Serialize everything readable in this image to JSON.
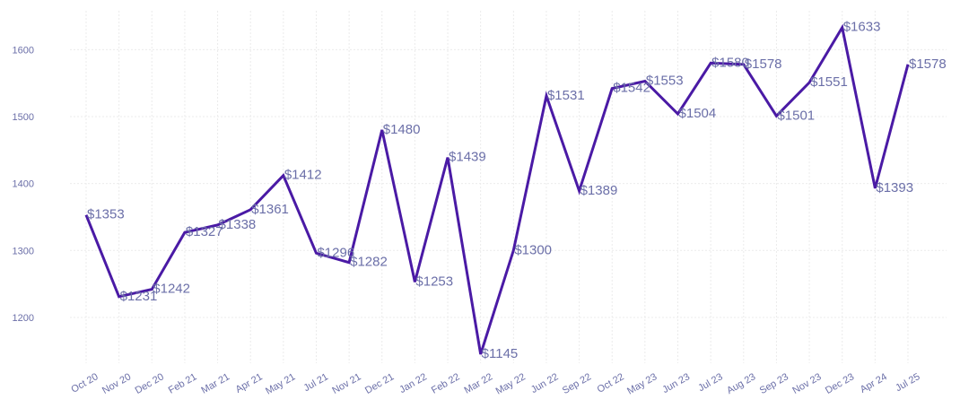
{
  "chart_data": {
    "type": "line",
    "title": "",
    "xlabel": "",
    "ylabel": "",
    "categories": [
      "Oct 20",
      "Nov 20",
      "Dec 20",
      "Feb 21",
      "Mar 21",
      "Apr 21",
      "May 21",
      "Jul 21",
      "Nov 21",
      "Dec 21",
      "Jan 22",
      "Feb 22",
      "Mar 22",
      "May 22",
      "Jun 22",
      "Sep 22",
      "Oct 22",
      "May 23",
      "Jun 23",
      "Jul 23",
      "Aug 23",
      "Sep 23",
      "Nov 23",
      "Dec 23",
      "Apr 24",
      "Jul 25"
    ],
    "values": [
      1353,
      1231,
      1242,
      1327,
      1338,
      1361,
      1412,
      1296,
      1282,
      1480,
      1253,
      1439,
      1145,
      1300,
      1531,
      1389,
      1542,
      1553,
      1504,
      1580,
      1578,
      1501,
      1551,
      1633,
      1393,
      1578
    ],
    "data_labels": [
      "$1353",
      "$1231",
      "$1242",
      "$1327",
      "$1338",
      "$1361",
      "$1412",
      "$1296",
      "$1282",
      "$1480",
      "$1253",
      "$1439",
      "$1145",
      "$1300",
      "$1531",
      "$1389",
      "$1542",
      "$1553",
      "$1504",
      "$1580",
      "$1578",
      "$1501",
      "$1551",
      "$1633",
      "$1393",
      "$1578"
    ],
    "y_ticks": [
      1200,
      1300,
      1400,
      1500,
      1600
    ],
    "ylim": [
      1120,
      1660
    ],
    "grid": true,
    "legend": "none",
    "colors": {
      "line": "#4a1aa5",
      "text": "#6b6fa8",
      "grid": "#ebebeb"
    }
  }
}
